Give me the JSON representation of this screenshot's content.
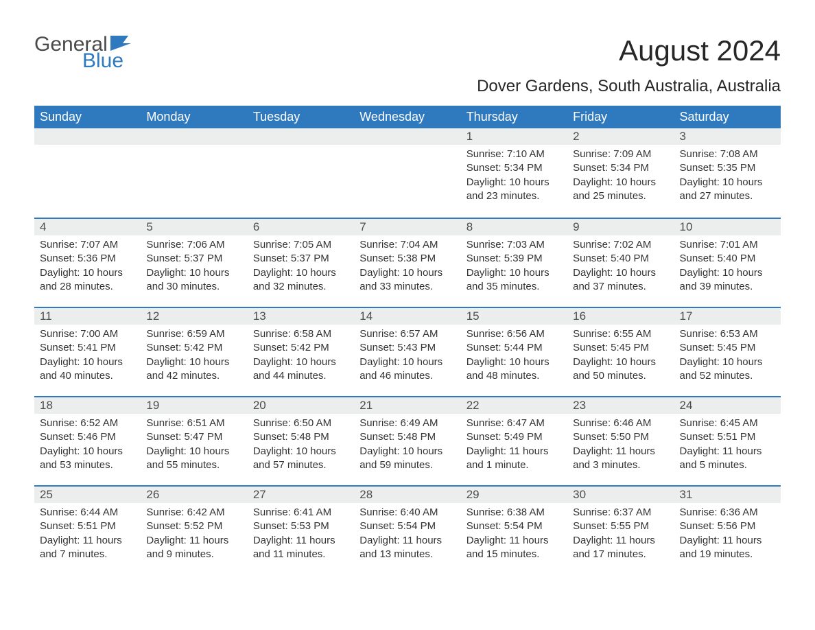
{
  "logo": {
    "text_general": "General",
    "text_blue": "Blue",
    "shape_color": "#2f7abf"
  },
  "title": "August 2024",
  "location": "Dover Gardens, South Australia, Australia",
  "day_headers": [
    "Sunday",
    "Monday",
    "Tuesday",
    "Wednesday",
    "Thursday",
    "Friday",
    "Saturday"
  ],
  "colors": {
    "header_bg": "#2f7abf",
    "header_text": "#ffffff",
    "daynum_bg": "#eceeee",
    "daynum_border": "#2f7abf",
    "text": "#333333",
    "title_text": "#272727",
    "background": "#ffffff"
  },
  "weeks": [
    [
      null,
      null,
      null,
      null,
      {
        "n": "1",
        "sunrise": "Sunrise: 7:10 AM",
        "sunset": "Sunset: 5:34 PM",
        "daylight": "Daylight: 10 hours and 23 minutes."
      },
      {
        "n": "2",
        "sunrise": "Sunrise: 7:09 AM",
        "sunset": "Sunset: 5:34 PM",
        "daylight": "Daylight: 10 hours and 25 minutes."
      },
      {
        "n": "3",
        "sunrise": "Sunrise: 7:08 AM",
        "sunset": "Sunset: 5:35 PM",
        "daylight": "Daylight: 10 hours and 27 minutes."
      }
    ],
    [
      {
        "n": "4",
        "sunrise": "Sunrise: 7:07 AM",
        "sunset": "Sunset: 5:36 PM",
        "daylight": "Daylight: 10 hours and 28 minutes."
      },
      {
        "n": "5",
        "sunrise": "Sunrise: 7:06 AM",
        "sunset": "Sunset: 5:37 PM",
        "daylight": "Daylight: 10 hours and 30 minutes."
      },
      {
        "n": "6",
        "sunrise": "Sunrise: 7:05 AM",
        "sunset": "Sunset: 5:37 PM",
        "daylight": "Daylight: 10 hours and 32 minutes."
      },
      {
        "n": "7",
        "sunrise": "Sunrise: 7:04 AM",
        "sunset": "Sunset: 5:38 PM",
        "daylight": "Daylight: 10 hours and 33 minutes."
      },
      {
        "n": "8",
        "sunrise": "Sunrise: 7:03 AM",
        "sunset": "Sunset: 5:39 PM",
        "daylight": "Daylight: 10 hours and 35 minutes."
      },
      {
        "n": "9",
        "sunrise": "Sunrise: 7:02 AM",
        "sunset": "Sunset: 5:40 PM",
        "daylight": "Daylight: 10 hours and 37 minutes."
      },
      {
        "n": "10",
        "sunrise": "Sunrise: 7:01 AM",
        "sunset": "Sunset: 5:40 PM",
        "daylight": "Daylight: 10 hours and 39 minutes."
      }
    ],
    [
      {
        "n": "11",
        "sunrise": "Sunrise: 7:00 AM",
        "sunset": "Sunset: 5:41 PM",
        "daylight": "Daylight: 10 hours and 40 minutes."
      },
      {
        "n": "12",
        "sunrise": "Sunrise: 6:59 AM",
        "sunset": "Sunset: 5:42 PM",
        "daylight": "Daylight: 10 hours and 42 minutes."
      },
      {
        "n": "13",
        "sunrise": "Sunrise: 6:58 AM",
        "sunset": "Sunset: 5:42 PM",
        "daylight": "Daylight: 10 hours and 44 minutes."
      },
      {
        "n": "14",
        "sunrise": "Sunrise: 6:57 AM",
        "sunset": "Sunset: 5:43 PM",
        "daylight": "Daylight: 10 hours and 46 minutes."
      },
      {
        "n": "15",
        "sunrise": "Sunrise: 6:56 AM",
        "sunset": "Sunset: 5:44 PM",
        "daylight": "Daylight: 10 hours and 48 minutes."
      },
      {
        "n": "16",
        "sunrise": "Sunrise: 6:55 AM",
        "sunset": "Sunset: 5:45 PM",
        "daylight": "Daylight: 10 hours and 50 minutes."
      },
      {
        "n": "17",
        "sunrise": "Sunrise: 6:53 AM",
        "sunset": "Sunset: 5:45 PM",
        "daylight": "Daylight: 10 hours and 52 minutes."
      }
    ],
    [
      {
        "n": "18",
        "sunrise": "Sunrise: 6:52 AM",
        "sunset": "Sunset: 5:46 PM",
        "daylight": "Daylight: 10 hours and 53 minutes."
      },
      {
        "n": "19",
        "sunrise": "Sunrise: 6:51 AM",
        "sunset": "Sunset: 5:47 PM",
        "daylight": "Daylight: 10 hours and 55 minutes."
      },
      {
        "n": "20",
        "sunrise": "Sunrise: 6:50 AM",
        "sunset": "Sunset: 5:48 PM",
        "daylight": "Daylight: 10 hours and 57 minutes."
      },
      {
        "n": "21",
        "sunrise": "Sunrise: 6:49 AM",
        "sunset": "Sunset: 5:48 PM",
        "daylight": "Daylight: 10 hours and 59 minutes."
      },
      {
        "n": "22",
        "sunrise": "Sunrise: 6:47 AM",
        "sunset": "Sunset: 5:49 PM",
        "daylight": "Daylight: 11 hours and 1 minute."
      },
      {
        "n": "23",
        "sunrise": "Sunrise: 6:46 AM",
        "sunset": "Sunset: 5:50 PM",
        "daylight": "Daylight: 11 hours and 3 minutes."
      },
      {
        "n": "24",
        "sunrise": "Sunrise: 6:45 AM",
        "sunset": "Sunset: 5:51 PM",
        "daylight": "Daylight: 11 hours and 5 minutes."
      }
    ],
    [
      {
        "n": "25",
        "sunrise": "Sunrise: 6:44 AM",
        "sunset": "Sunset: 5:51 PM",
        "daylight": "Daylight: 11 hours and 7 minutes."
      },
      {
        "n": "26",
        "sunrise": "Sunrise: 6:42 AM",
        "sunset": "Sunset: 5:52 PM",
        "daylight": "Daylight: 11 hours and 9 minutes."
      },
      {
        "n": "27",
        "sunrise": "Sunrise: 6:41 AM",
        "sunset": "Sunset: 5:53 PM",
        "daylight": "Daylight: 11 hours and 11 minutes."
      },
      {
        "n": "28",
        "sunrise": "Sunrise: 6:40 AM",
        "sunset": "Sunset: 5:54 PM",
        "daylight": "Daylight: 11 hours and 13 minutes."
      },
      {
        "n": "29",
        "sunrise": "Sunrise: 6:38 AM",
        "sunset": "Sunset: 5:54 PM",
        "daylight": "Daylight: 11 hours and 15 minutes."
      },
      {
        "n": "30",
        "sunrise": "Sunrise: 6:37 AM",
        "sunset": "Sunset: 5:55 PM",
        "daylight": "Daylight: 11 hours and 17 minutes."
      },
      {
        "n": "31",
        "sunrise": "Sunrise: 6:36 AM",
        "sunset": "Sunset: 5:56 PM",
        "daylight": "Daylight: 11 hours and 19 minutes."
      }
    ]
  ]
}
